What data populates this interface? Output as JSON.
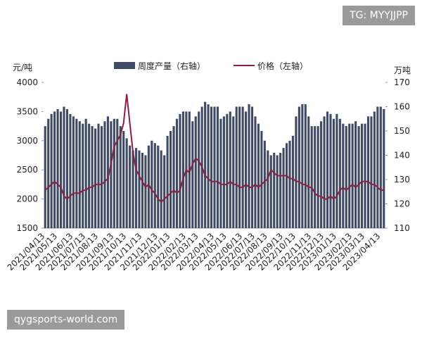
{
  "chart_data": {
    "type": "bar-line",
    "watermark_top": "TG: MYYJJPP",
    "watermark_bottom": "qygsports-world.com",
    "y_unit": "元/吨",
    "y2_unit": "万吨",
    "categories": [
      "2021/04/13",
      null,
      null,
      null,
      "2021/05/13",
      null,
      null,
      null,
      null,
      "2021/06/13",
      null,
      null,
      null,
      "2021/07/13",
      null,
      null,
      null,
      "2021/08/13",
      null,
      null,
      null,
      null,
      "2021/09/13",
      null,
      null,
      null,
      "2021/10/13",
      null,
      null,
      null,
      null,
      "2021/11/13",
      null,
      null,
      null,
      null,
      "2021/12/13",
      null,
      null,
      null,
      "2022/01/13",
      null,
      null,
      null,
      null,
      "2022/02/13",
      null,
      null,
      null,
      "2022/03/13",
      null,
      null,
      null,
      null,
      "2022/04/13",
      null,
      null,
      null,
      "2022/05/13",
      null,
      null,
      null,
      null,
      "2022/06/13",
      null,
      null,
      null,
      "2022/07/13",
      null,
      null,
      null,
      "2022/08/13",
      null,
      null,
      null,
      null,
      "2022/09/13",
      null,
      null,
      null,
      "2022/10/13",
      null,
      null,
      null,
      null,
      "2022/11/13",
      null,
      null,
      null,
      "2022/12/13",
      null,
      null,
      null,
      "2023/01/13",
      null,
      null,
      null,
      null,
      "2023/02/13",
      null,
      null,
      null,
      "2023/03/13",
      null,
      null,
      null,
      null,
      "2023/04/13",
      null
    ],
    "series": [
      {
        "name": "周度产量（右轴）",
        "kind": "bar",
        "axis": "y2",
        "color": "#3e4a66",
        "values": [
          152,
          155,
          157,
          158,
          159,
          158,
          160,
          159,
          157,
          156,
          155,
          154,
          153,
          155,
          153,
          152,
          151,
          153,
          152,
          154,
          156,
          154,
          155,
          155,
          152,
          150,
          147,
          144,
          142,
          143,
          142,
          141,
          140,
          144,
          146,
          145,
          144,
          142,
          140,
          148,
          150,
          152,
          155,
          157,
          158,
          158,
          158,
          154,
          156,
          158,
          160,
          162,
          161,
          160,
          160,
          160,
          155,
          156,
          157,
          158,
          156,
          160,
          160,
          160,
          158,
          161,
          160,
          156,
          153,
          150,
          146,
          142,
          140,
          141,
          140,
          141,
          143,
          145,
          146,
          148,
          156,
          160,
          161,
          161,
          156,
          152,
          152,
          152,
          154,
          156,
          158,
          157,
          155,
          157,
          155,
          153,
          152,
          153,
          153,
          154,
          152,
          153,
          153,
          156,
          156,
          158,
          160,
          160,
          159
        ]
      },
      {
        "name": "价格（左轴）",
        "kind": "line",
        "axis": "y",
        "color": "#8e1f40",
        "values": [
          2150,
          2200,
          2250,
          2300,
          2250,
          2200,
          2050,
          2000,
          2050,
          2100,
          2100,
          2100,
          2150,
          2150,
          2200,
          2200,
          2250,
          2250,
          2250,
          2300,
          2350,
          2600,
          2900,
          3000,
          3100,
          3300,
          3800,
          3300,
          2800,
          2500,
          2400,
          2300,
          2200,
          2250,
          2150,
          2100,
          2000,
          1950,
          2000,
          2050,
          2100,
          2150,
          2100,
          2150,
          2350,
          2500,
          2450,
          2600,
          2700,
          2650,
          2550,
          2400,
          2350,
          2300,
          2300,
          2300,
          2250,
          2250,
          2250,
          2300,
          2250,
          2250,
          2200,
          2200,
          2250,
          2200,
          2200,
          2250,
          2200,
          2250,
          2300,
          2350,
          2500,
          2450,
          2400,
          2400,
          2400,
          2400,
          2350,
          2350,
          2300,
          2300,
          2250,
          2250,
          2200,
          2200,
          2100,
          2050,
          2050,
          2000,
          2000,
          2050,
          2000,
          2050,
          2150,
          2200,
          2150,
          2200,
          2250,
          2200,
          2250,
          2300,
          2300,
          2300,
          2250,
          2250,
          2200,
          2150,
          2150
        ]
      }
    ],
    "ylim": [
      1500,
      4000
    ],
    "yticks": [
      1500,
      2000,
      2500,
      3000,
      3500,
      4000
    ],
    "y2lim": [
      110,
      170
    ],
    "y2ticks": [
      110,
      120,
      130,
      140,
      150,
      160,
      170
    ]
  }
}
